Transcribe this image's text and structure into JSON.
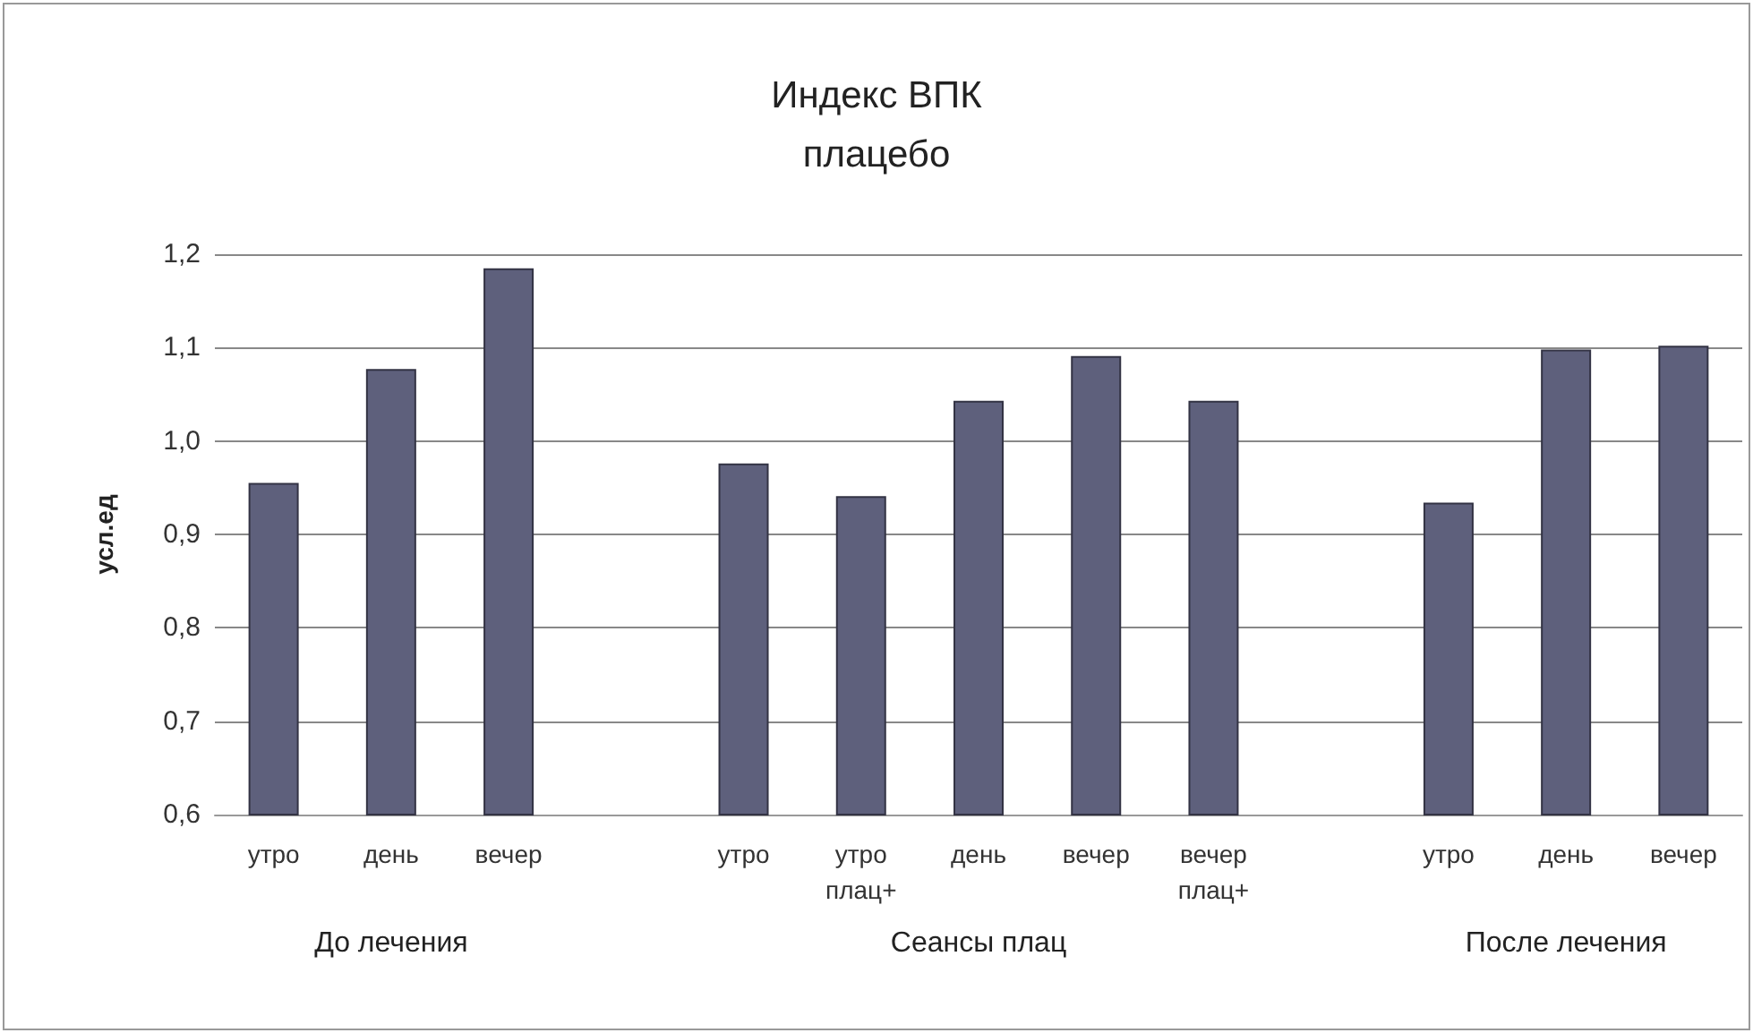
{
  "chart_data": {
    "type": "bar",
    "title": "Индекс ВПК",
    "subtitle": "плацебо",
    "ylabel": "усл.ед",
    "categories": [
      "утро",
      "день",
      "вечер",
      null,
      "утро",
      "утро\nплац+",
      "день",
      "вечер",
      "вечер\nплац+",
      null,
      "утро",
      "день",
      "вечер"
    ],
    "values": [
      0.955,
      1.077,
      1.185,
      null,
      0.976,
      0.941,
      1.043,
      1.091,
      1.043,
      null,
      0.934,
      1.098,
      1.102
    ],
    "color": "#5e607c",
    "ylim": [
      0.6,
      1.2
    ],
    "yticks": [
      {
        "value": 0.6,
        "label": "0,6"
      },
      {
        "value": 0.7,
        "label": "0,7"
      },
      {
        "value": 0.8,
        "label": "0,8"
      },
      {
        "value": 0.9,
        "label": "0,9"
      },
      {
        "value": 1.0,
        "label": "1,0"
      },
      {
        "value": 1.1,
        "label": "1,1"
      },
      {
        "value": 1.2,
        "label": "1,2"
      }
    ],
    "grid": "y",
    "annotations": [
      "До лечения",
      "Сеансы плац",
      "После лечения"
    ]
  }
}
